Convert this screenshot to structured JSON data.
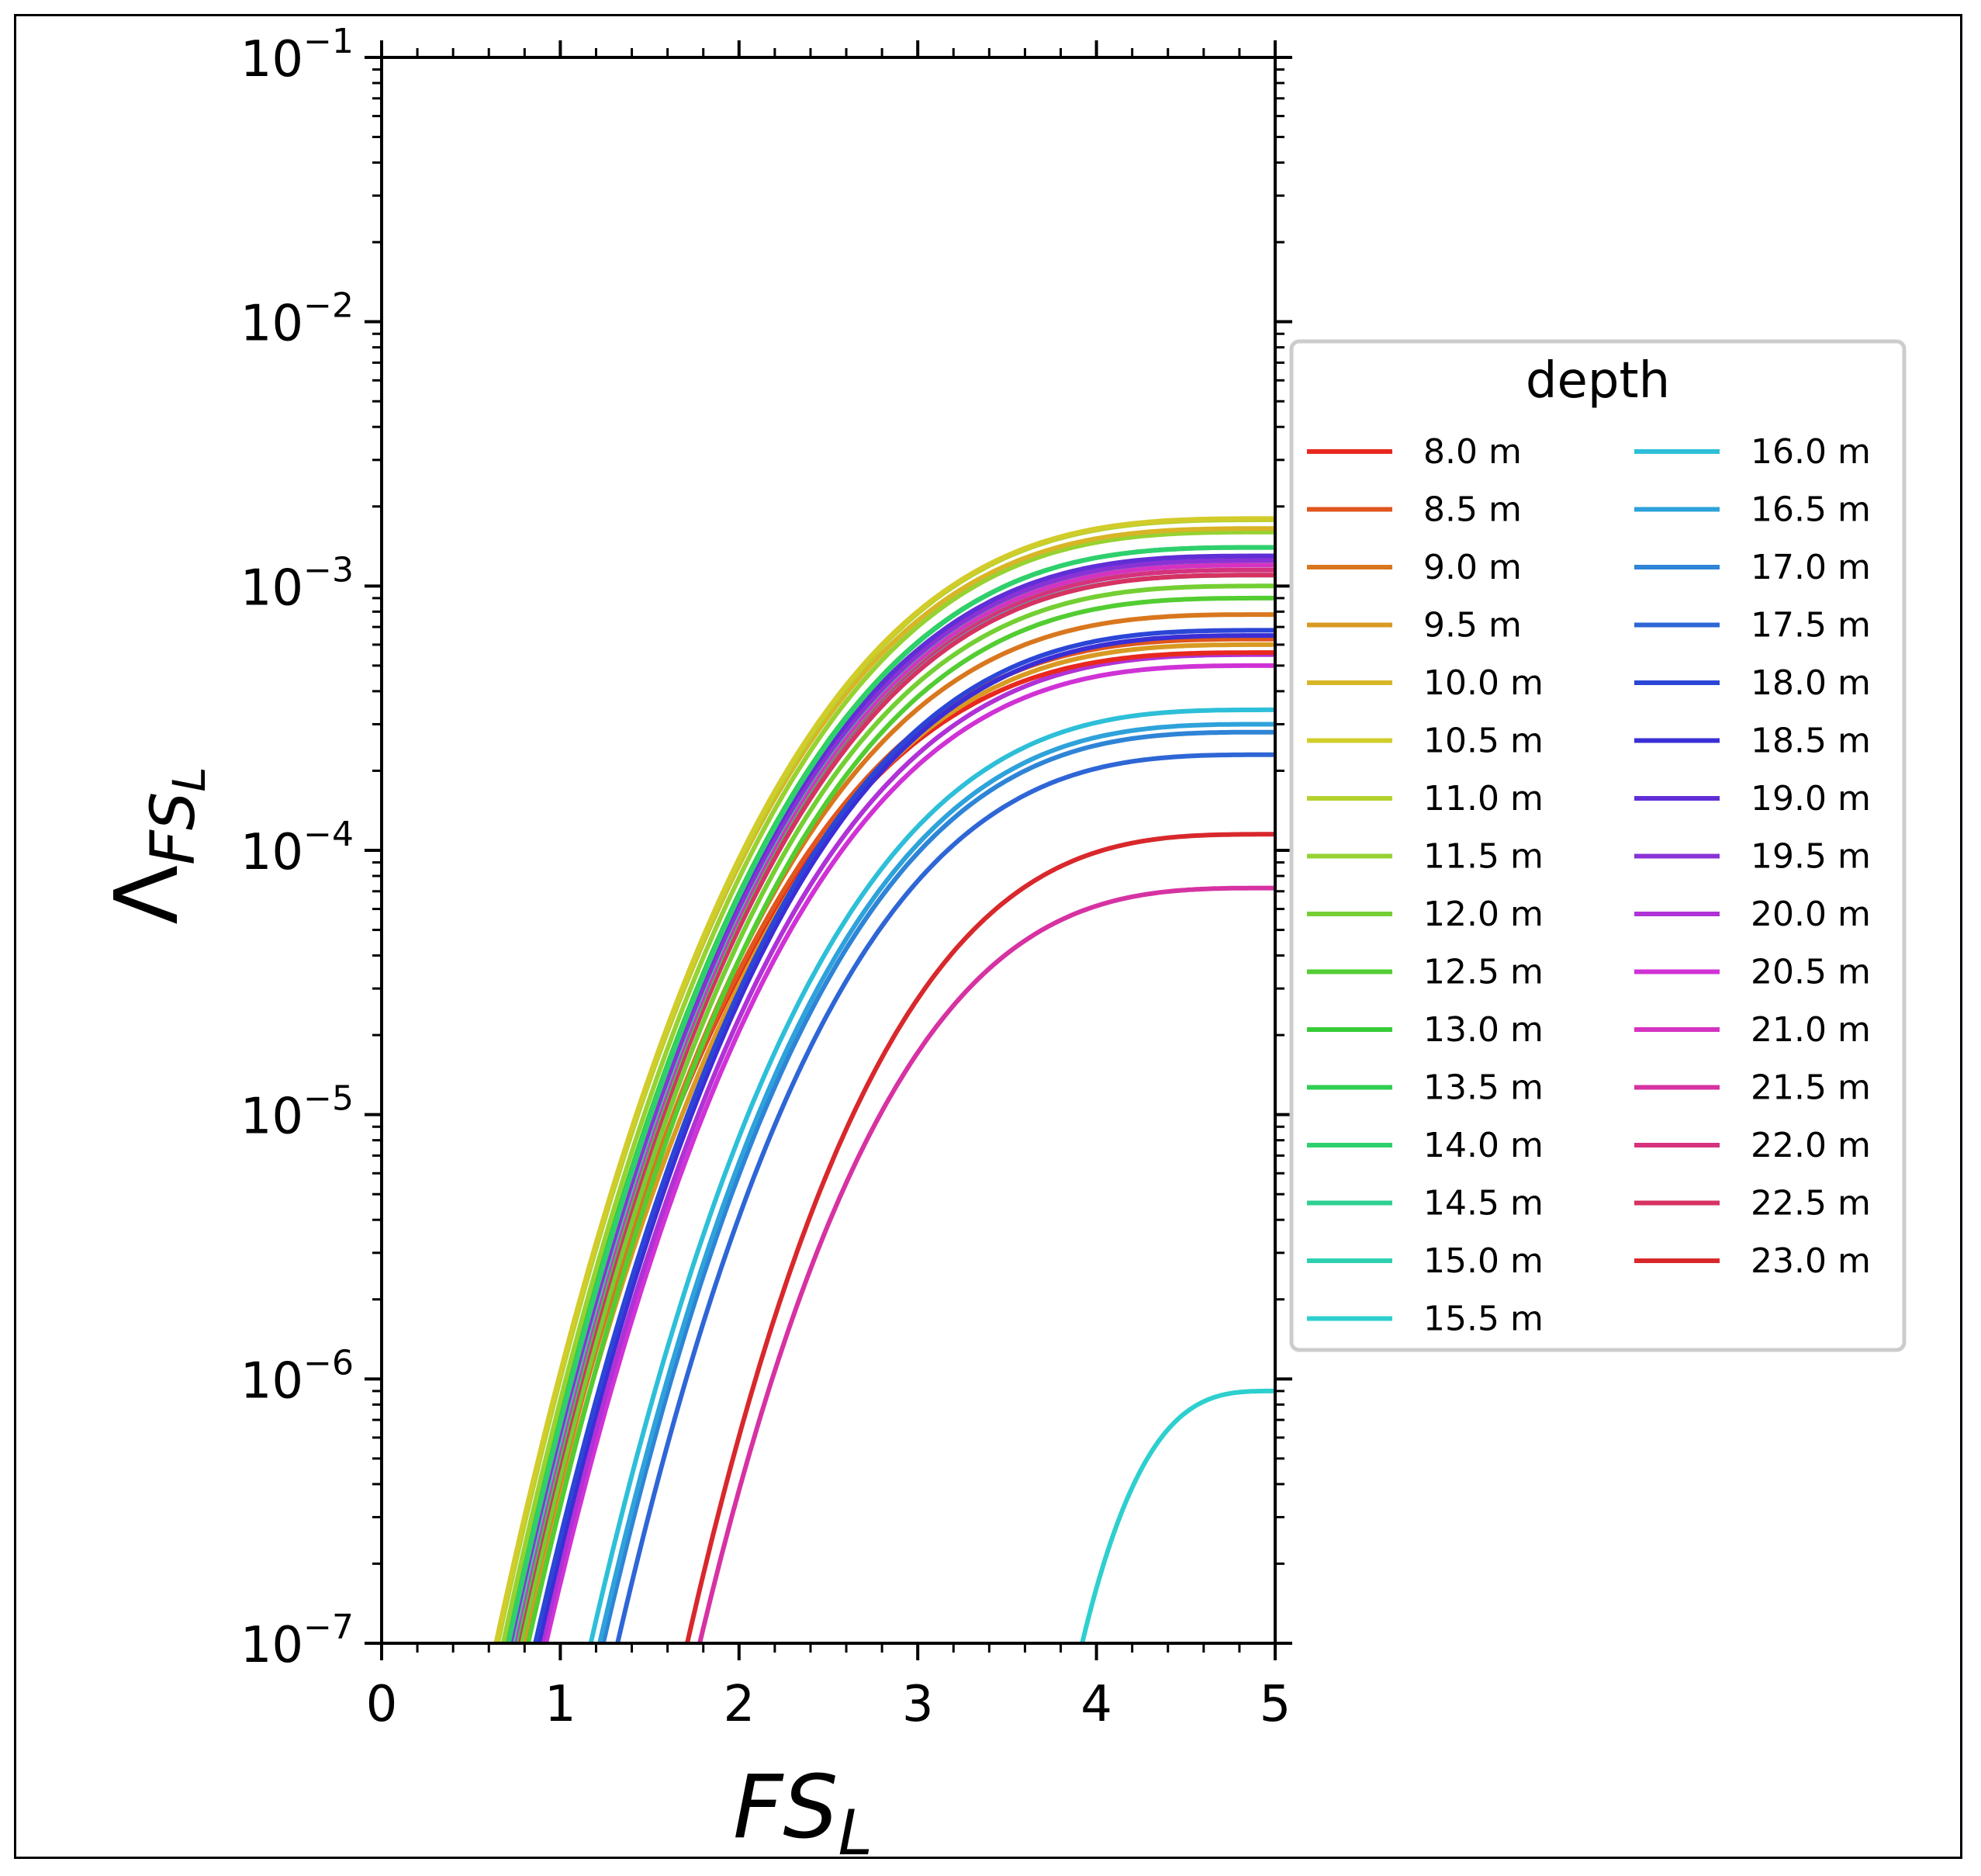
{
  "chart_data": {
    "type": "line",
    "title": "",
    "xlabel": "FS",
    "xlabel_sub": "L",
    "ylabel": "Λ",
    "ylabel_sub": "FS",
    "ylabel_subsub": "L",
    "xlim": [
      0,
      5
    ],
    "ylim_exponent": [
      -7,
      -1
    ],
    "yscale": "log",
    "x_ticks": [
      "0",
      "1",
      "2",
      "3",
      "4",
      "5"
    ],
    "y_tick_base": "10",
    "y_tick_exponents": [
      "−7",
      "−6",
      "−5",
      "−4",
      "−3",
      "−2",
      "−1"
    ],
    "legend": {
      "title": "depth",
      "placement": "right",
      "columns": 2
    },
    "series": [
      {
        "name": "8.0 m",
        "color": "#e8281e",
        "fs_start": 0.74,
        "end_value": 0.00056
      },
      {
        "name": "8.5 m",
        "color": "#e0561c",
        "fs_start": 0.76,
        "end_value": 0.00063
      },
      {
        "name": "9.0 m",
        "color": "#d9771e",
        "fs_start": 0.78,
        "end_value": 0.00078
      },
      {
        "name": "9.5 m",
        "color": "#d89a22",
        "fs_start": 0.8,
        "end_value": 0.0006
      },
      {
        "name": "10.0 m",
        "color": "#d8b526",
        "fs_start": 0.64,
        "end_value": 0.00165
      },
      {
        "name": "10.5 m",
        "color": "#d2cc2b",
        "fs_start": 0.64,
        "end_value": 0.0018
      },
      {
        "name": "11.0 m",
        "color": "#b4d22f",
        "fs_start": 0.65,
        "end_value": 0.00178
      },
      {
        "name": "11.5 m",
        "color": "#96d232",
        "fs_start": 0.68,
        "end_value": 0.0016
      },
      {
        "name": "12.0 m",
        "color": "#74cf33",
        "fs_start": 0.78,
        "end_value": 0.001
      },
      {
        "name": "12.5 m",
        "color": "#52cd32",
        "fs_start": 0.82,
        "end_value": 0.0009
      },
      {
        "name": "13.0 m",
        "color": "#35cc38",
        "fs_start": 0.7,
        "end_value": 0.0014
      },
      {
        "name": "13.5 m",
        "color": "#2fce50",
        "fs_start": 0.75,
        "end_value": 0.0012
      },
      {
        "name": "14.0 m",
        "color": "#2ed06e",
        "fs_start": 0.71,
        "end_value": 0.0014
      },
      {
        "name": "14.5 m",
        "color": "#2ed092",
        "fs_start": 0.73,
        "end_value": 0.00125
      },
      {
        "name": "15.0 m",
        "color": "#2ed0b2",
        "fs_start": 0.72,
        "end_value": 0.0011
      },
      {
        "name": "15.5 m",
        "color": "#2ecfcf",
        "fs_start": 3.92,
        "end_value": 9e-07
      },
      {
        "name": "16.0 m",
        "color": "#2ebfd8",
        "fs_start": 1.17,
        "end_value": 0.00034
      },
      {
        "name": "16.5 m",
        "color": "#2ea2da",
        "fs_start": 1.22,
        "end_value": 0.0003
      },
      {
        "name": "17.0 m",
        "color": "#2e84d6",
        "fs_start": 1.24,
        "end_value": 0.00028
      },
      {
        "name": "17.5 m",
        "color": "#2e66d6",
        "fs_start": 1.32,
        "end_value": 0.00023
      },
      {
        "name": "18.0 m",
        "color": "#2b46d6",
        "fs_start": 0.86,
        "end_value": 0.00068
      },
      {
        "name": "18.5 m",
        "color": "#3a2ed6",
        "fs_start": 0.88,
        "end_value": 0.00065
      },
      {
        "name": "19.0 m",
        "color": "#602ed6",
        "fs_start": 0.7,
        "end_value": 0.0013
      },
      {
        "name": "19.5 m",
        "color": "#8a32d6",
        "fs_start": 0.72,
        "end_value": 0.00125
      },
      {
        "name": "20.0 m",
        "color": "#b032d6",
        "fs_start": 0.9,
        "end_value": 0.00055
      },
      {
        "name": "20.5 m",
        "color": "#d032d6",
        "fs_start": 0.92,
        "end_value": 0.0005
      },
      {
        "name": "21.0 m",
        "color": "#d632c2",
        "fs_start": 0.74,
        "end_value": 0.0012
      },
      {
        "name": "21.5 m",
        "color": "#d632a2",
        "fs_start": 1.78,
        "end_value": 7.2e-05
      },
      {
        "name": "22.0 m",
        "color": "#d6327e",
        "fs_start": 0.73,
        "end_value": 0.00115
      },
      {
        "name": "22.5 m",
        "color": "#d63262",
        "fs_start": 0.76,
        "end_value": 0.0011
      },
      {
        "name": "23.0 m",
        "color": "#d8282c",
        "fs_start": 1.71,
        "end_value": 0.000115
      }
    ]
  }
}
